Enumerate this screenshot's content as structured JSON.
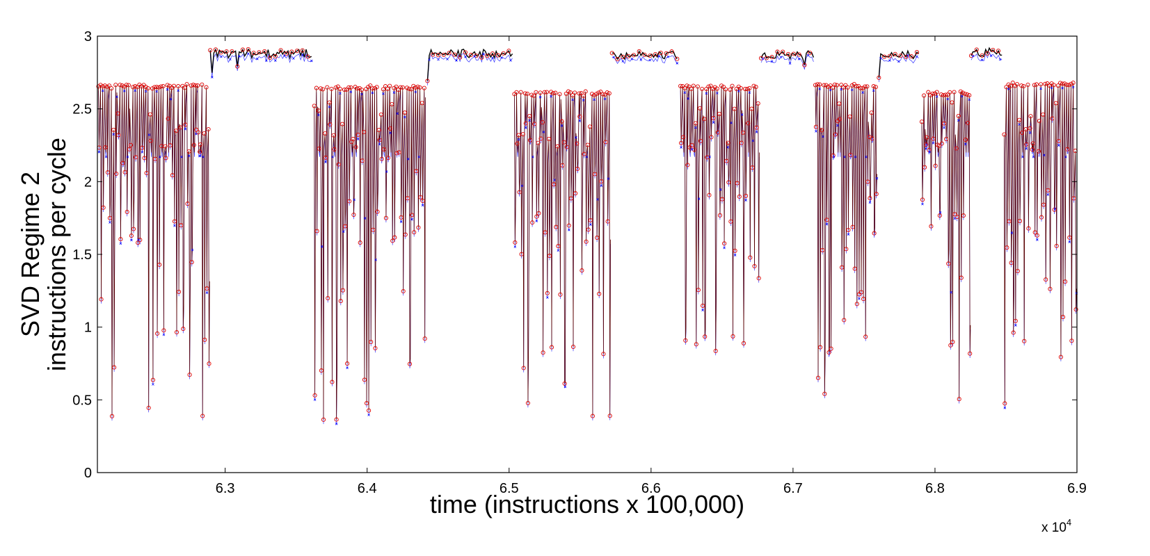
{
  "chart_data": {
    "type": "line",
    "ylabel_line1": "SVD Regime 2",
    "ylabel_line2": "instructions per cycle",
    "xlabel": "time (instructions x 100,000)",
    "x_exponent": {
      "base": "x 10",
      "power": "4"
    },
    "xlim": [
      62100,
      69000
    ],
    "ylim": [
      0,
      3
    ],
    "x_ticks": [
      63000,
      64000,
      65000,
      66000,
      67000,
      68000,
      69000
    ],
    "x_tick_labels": [
      "6.3",
      "6.4",
      "6.5",
      "6.6",
      "6.7",
      "6.8",
      "6.9"
    ],
    "y_ticks": [
      0,
      0.5,
      1,
      1.5,
      2,
      2.5,
      3
    ],
    "y_tick_labels": [
      "0",
      "0.5",
      "1",
      "1.5",
      "2",
      "2.5",
      "3"
    ],
    "grid": false,
    "colors": {
      "series_1": "#0000ff",
      "series_2": "#dd0000",
      "line": "#5a0000"
    },
    "series_markers": {
      "series_1": "x",
      "series_2": "o"
    },
    "segments": [
      {
        "x": [
          62100,
          62890
        ],
        "high": 2.67,
        "floor": 0.3,
        "active": true
      },
      {
        "x": [
          62890,
          63620
        ],
        "high": 2.91,
        "floor": 2.85,
        "active": false
      },
      {
        "x": [
          63620,
          64420
        ],
        "high": 2.66,
        "floor": 0.29,
        "active": true
      },
      {
        "x": [
          64420,
          65030
        ],
        "high": 2.91,
        "floor": 2.85,
        "active": false
      },
      {
        "x": [
          65030,
          65720
        ],
        "high": 2.62,
        "floor": 0.31,
        "active": true
      },
      {
        "x": [
          65720,
          66200
        ],
        "high": 2.9,
        "floor": 2.84,
        "active": false
      },
      {
        "x": [
          66200,
          66770
        ],
        "high": 2.66,
        "floor": 0.56,
        "active": true
      },
      {
        "x": [
          66770,
          67150
        ],
        "high": 2.9,
        "floor": 2.84,
        "active": false
      },
      {
        "x": [
          67150,
          67600
        ],
        "high": 2.67,
        "floor": 0.49,
        "active": true
      },
      {
        "x": [
          67600,
          67900
        ],
        "high": 2.9,
        "floor": 2.78,
        "active": false
      },
      {
        "x": [
          67900,
          68250
        ],
        "high": 2.62,
        "floor": 0.43,
        "active": true
      },
      {
        "x": [
          68250,
          68480
        ],
        "high": 2.92,
        "floor": 2.76,
        "active": false
      },
      {
        "x": [
          68480,
          69000
        ],
        "high": 2.68,
        "floor": 0.4,
        "active": true
      }
    ]
  }
}
